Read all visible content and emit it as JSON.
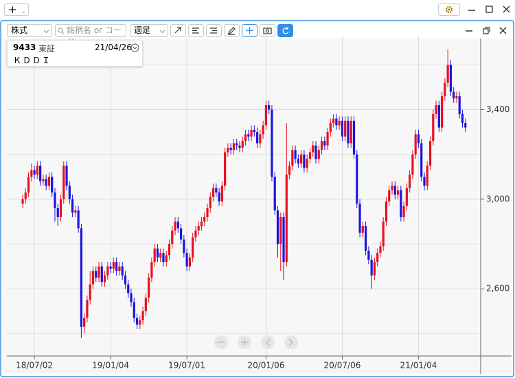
{
  "toolbar": {
    "market": "株式",
    "search_placeholder": "銘柄名 or コード",
    "period": "週足"
  },
  "info": {
    "code": "9433",
    "exchange": "東証",
    "date": "21/04/26",
    "name": "ＫＤＤＩ"
  },
  "chart_data": {
    "type": "candlestick",
    "categories": [
      null,
      null,
      null,
      null,
      "18/07/02",
      null,
      null,
      null,
      null,
      null,
      null,
      null,
      null,
      null,
      null,
      null,
      null,
      null,
      null,
      null,
      null,
      null,
      null,
      null,
      null,
      null,
      null,
      null,
      null,
      null,
      "19/01/04",
      null,
      null,
      null,
      null,
      null,
      null,
      null,
      null,
      null,
      null,
      null,
      null,
      null,
      null,
      null,
      null,
      null,
      null,
      null,
      null,
      null,
      null,
      null,
      null,
      null,
      "19/07/01",
      null,
      null,
      null,
      null,
      null,
      null,
      null,
      null,
      null,
      null,
      null,
      null,
      null,
      null,
      null,
      null,
      null,
      null,
      null,
      null,
      null,
      null,
      null,
      null,
      null,
      null,
      "20/01/06",
      null,
      null,
      null,
      null,
      null,
      null,
      null,
      null,
      null,
      null,
      null,
      null,
      null,
      null,
      null,
      null,
      null,
      null,
      null,
      null,
      null,
      null,
      null,
      null,
      null,
      "20/07/06",
      null,
      null,
      null,
      null,
      null,
      null,
      null,
      null,
      null,
      null,
      null,
      null,
      null,
      null,
      null,
      null,
      null,
      null,
      null,
      null,
      null,
      null,
      null,
      null,
      null,
      "21/01/04",
      null,
      null,
      null,
      null,
      null,
      null,
      null,
      null,
      null,
      null,
      null,
      null,
      null,
      null,
      null,
      null
    ],
    "open": [
      2980,
      3000,
      3030,
      3100,
      3130,
      3110,
      3150,
      3080,
      3090,
      3060,
      3100,
      3030,
      2960,
      2920,
      3000,
      3150,
      3060,
      3000,
      2940,
      2950,
      2870,
      2430,
      2470,
      2550,
      2620,
      2680,
      2650,
      2700,
      2630,
      2660,
      2700,
      2690,
      2720,
      2680,
      2700,
      2660,
      2620,
      2580,
      2540,
      2470,
      2440,
      2460,
      2500,
      2560,
      2650,
      2720,
      2780,
      2740,
      2760,
      2720,
      2750,
      2800,
      2860,
      2900,
      2870,
      2820,
      2760,
      2700,
      2740,
      2830,
      2860,
      2880,
      2900,
      2920,
      2960,
      3010,
      3050,
      3030,
      2990,
      3060,
      3210,
      3230,
      3220,
      3250,
      3240,
      3230,
      3260,
      3290,
      3280,
      3310,
      3300,
      3250,
      3290,
      3330,
      3420,
      3400,
      3100,
      2950,
      2800,
      2920,
      2720,
      3110,
      3150,
      3220,
      3180,
      3160,
      3200,
      3140,
      3180,
      3210,
      3240,
      3180,
      3220,
      3260,
      3240,
      3300,
      3340,
      3360,
      3330,
      3350,
      3280,
      3350,
      3250,
      3350,
      3200,
      2980,
      2850,
      2880,
      2770,
      2730,
      2660,
      2720,
      2760,
      2790,
      2900,
      2990,
      3040,
      3060,
      3020,
      3040,
      2920,
      2970,
      3050,
      3110,
      3200,
      3290,
      3250,
      3100,
      3060,
      3150,
      3260,
      3380,
      3420,
      3320,
      3460,
      3520,
      3600,
      3480,
      3450,
      3460,
      3380,
      3340
    ],
    "high": [
      3020,
      3050,
      3120,
      3160,
      3150,
      3170,
      3170,
      3110,
      3110,
      3120,
      3120,
      3050,
      2980,
      3020,
      3170,
      3170,
      3080,
      3020,
      2970,
      2970,
      2890,
      2490,
      2570,
      2680,
      2700,
      2700,
      2720,
      2720,
      2680,
      2720,
      2720,
      2740,
      2740,
      2720,
      2720,
      2680,
      2640,
      2600,
      2560,
      2490,
      2480,
      2520,
      2580,
      2670,
      2740,
      2800,
      2800,
      2780,
      2780,
      2770,
      2820,
      2880,
      2920,
      2920,
      2890,
      2840,
      2780,
      2760,
      2850,
      2880,
      2900,
      2920,
      2940,
      2980,
      3030,
      3070,
      3070,
      3050,
      3080,
      3230,
      3250,
      3250,
      3270,
      3270,
      3260,
      3280,
      3310,
      3310,
      3330,
      3330,
      3320,
      3310,
      3350,
      3440,
      3440,
      3420,
      3120,
      2970,
      2940,
      2940,
      3340,
      3170,
      3240,
      3240,
      3200,
      3220,
      3220,
      3200,
      3230,
      3260,
      3260,
      3240,
      3280,
      3280,
      3320,
      3360,
      3380,
      3380,
      3370,
      3370,
      3370,
      3370,
      3370,
      3370,
      3220,
      3000,
      2900,
      2900,
      2790,
      2750,
      2740,
      2780,
      2810,
      2920,
      3010,
      3060,
      3080,
      3080,
      3060,
      3060,
      2990,
      3070,
      3130,
      3220,
      3310,
      3310,
      3270,
      3120,
      3170,
      3280,
      3400,
      3440,
      3440,
      3480,
      3540,
      3670,
      3620,
      3500,
      3480,
      3480,
      3400,
      3360
    ],
    "low": [
      2960,
      2980,
      3010,
      3080,
      3090,
      3090,
      3060,
      3060,
      3040,
      3040,
      3010,
      2900,
      2880,
      2900,
      2980,
      3040,
      2980,
      2920,
      2920,
      2850,
      2380,
      2400,
      2450,
      2530,
      2600,
      2630,
      2630,
      2610,
      2610,
      2640,
      2670,
      2670,
      2660,
      2660,
      2640,
      2600,
      2560,
      2520,
      2450,
      2420,
      2420,
      2440,
      2480,
      2540,
      2630,
      2700,
      2720,
      2720,
      2700,
      2700,
      2730,
      2780,
      2840,
      2850,
      2800,
      2740,
      2680,
      2680,
      2720,
      2810,
      2840,
      2860,
      2880,
      2900,
      2940,
      2990,
      3010,
      2970,
      2970,
      3040,
      3190,
      3200,
      3200,
      3220,
      3210,
      3210,
      3240,
      3260,
      3260,
      3280,
      3230,
      3230,
      3270,
      3310,
      3380,
      3080,
      2930,
      2740,
      2680,
      2640,
      2700,
      3090,
      3130,
      3160,
      3140,
      3140,
      3120,
      3120,
      3160,
      3190,
      3160,
      3160,
      3200,
      3220,
      3220,
      3280,
      3320,
      3310,
      3310,
      3260,
      3260,
      3230,
      3230,
      3180,
      2960,
      2830,
      2830,
      2750,
      2710,
      2600,
      2640,
      2700,
      2740,
      2770,
      2880,
      2970,
      3020,
      3000,
      3000,
      2900,
      2900,
      2950,
      3030,
      3090,
      3180,
      3230,
      3080,
      3040,
      3040,
      3130,
      3240,
      3360,
      3300,
      3300,
      3440,
      3500,
      3460,
      3430,
      3430,
      3360,
      3320,
      3300
    ],
    "close": [
      3000,
      3030,
      3100,
      3130,
      3110,
      3150,
      3080,
      3090,
      3060,
      3100,
      3030,
      2960,
      2920,
      3000,
      3150,
      3060,
      3000,
      2940,
      2950,
      2870,
      2430,
      2470,
      2550,
      2620,
      2680,
      2650,
      2700,
      2630,
      2660,
      2700,
      2690,
      2720,
      2680,
      2700,
      2660,
      2620,
      2580,
      2540,
      2470,
      2440,
      2460,
      2500,
      2560,
      2650,
      2720,
      2780,
      2740,
      2760,
      2720,
      2750,
      2800,
      2860,
      2900,
      2870,
      2820,
      2760,
      2700,
      2740,
      2830,
      2860,
      2880,
      2900,
      2920,
      2960,
      3010,
      3050,
      3030,
      2990,
      3060,
      3210,
      3230,
      3220,
      3250,
      3240,
      3230,
      3260,
      3290,
      3280,
      3310,
      3300,
      3250,
      3290,
      3330,
      3420,
      3400,
      3100,
      2950,
      2800,
      2920,
      2720,
      3110,
      3150,
      3220,
      3180,
      3160,
      3200,
      3140,
      3180,
      3210,
      3240,
      3180,
      3220,
      3260,
      3240,
      3300,
      3340,
      3360,
      3330,
      3350,
      3280,
      3350,
      3250,
      3350,
      3200,
      2980,
      2850,
      2880,
      2770,
      2730,
      2660,
      2720,
      2760,
      2790,
      2900,
      2990,
      3040,
      3060,
      3020,
      3040,
      2920,
      2970,
      3050,
      3110,
      3200,
      3290,
      3250,
      3100,
      3060,
      3150,
      3260,
      3380,
      3420,
      3320,
      3460,
      3520,
      3600,
      3480,
      3450,
      3460,
      3380,
      3340,
      3320
    ],
    "up_color": "#e8101e",
    "down_color": "#1c14e0",
    "ylim": [
      2300,
      3730
    ],
    "yticks": [
      {
        "value": 2600,
        "label": "2,600"
      },
      {
        "value": 3000,
        "label": "3,000"
      },
      {
        "value": 3400,
        "label": "3,400"
      }
    ],
    "minor_yticks": [
      2400,
      2800,
      3200,
      3600
    ],
    "grid": true
  }
}
